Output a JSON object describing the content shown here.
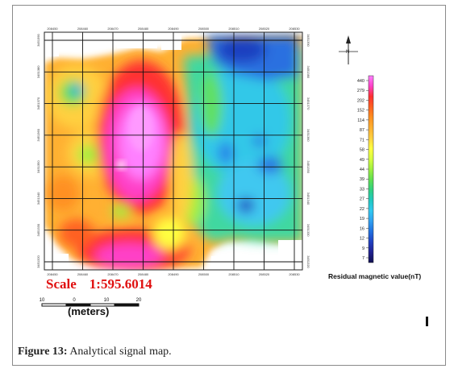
{
  "figure": {
    "label": "Figure 13:",
    "caption": "Analytical signal map."
  },
  "scale": {
    "label": "Scale",
    "ratio": "1:595.6014",
    "bar_units": "(meters)",
    "bar_ticks": [
      "10",
      "0",
      "10",
      "20"
    ]
  },
  "north_arrow": {
    "label": "N",
    "icon": "north-arrow-icon"
  },
  "colorbar": {
    "title": "Residual magnetic value(nT)",
    "ticks": [
      "440",
      "279",
      "202",
      "152",
      "114",
      "87",
      "71",
      "58",
      "49",
      "44",
      "39",
      "33",
      "27",
      "22",
      "19",
      "16",
      "12",
      "9",
      "7"
    ],
    "colors": [
      "#ff80ff",
      "#ff40c8",
      "#ff3030",
      "#ff6020",
      "#ff9020",
      "#ffb030",
      "#ffd040",
      "#ffff40",
      "#d8ff40",
      "#a0f040",
      "#60e050",
      "#30d080",
      "#20c8c0",
      "#30c8f0",
      "#30a0f0",
      "#2070e0",
      "#2040c0",
      "#202090",
      "#101050"
    ]
  },
  "grid_labels": {
    "x_top": [
      "208450",
      "208460",
      "208470",
      "208480",
      "208490",
      "208500",
      "208510",
      "208520",
      "208530"
    ],
    "x_bottom": [
      "208450",
      "208460",
      "208470",
      "208480",
      "208490",
      "208500",
      "208510",
      "208520",
      "208530"
    ],
    "y_left": [
      "3451390",
      "3451380",
      "3451370",
      "3451360",
      "3451350",
      "3451340",
      "3451330",
      "3451320"
    ],
    "y_right": [
      "3451390",
      "3451380",
      "3451370",
      "3451360",
      "3451350",
      "3451340",
      "3451330",
      "3451320"
    ]
  },
  "colors": {
    "scale_text": "#e01010",
    "frame": "#8a8a8a"
  }
}
